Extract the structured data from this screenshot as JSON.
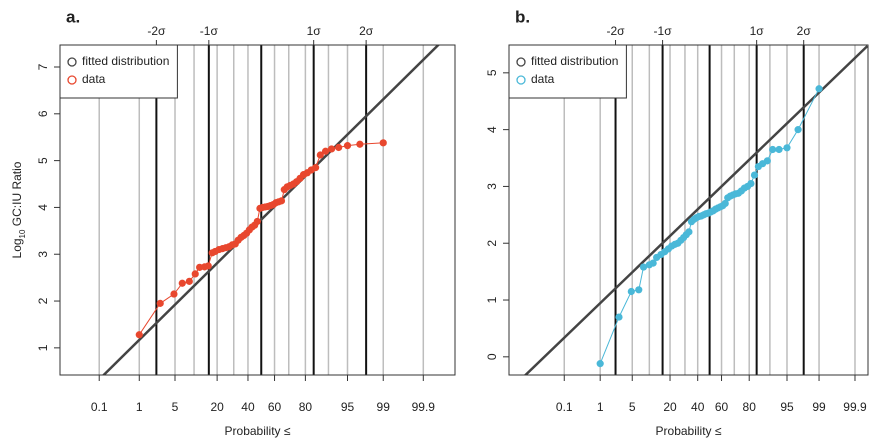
{
  "chart_data": [
    {
      "type": "probability",
      "panel_label": "a.",
      "xscale": "probit",
      "xlabel": "Probability ≤",
      "ylabel": [
        "Log",
        "10",
        " GC:IU Ratio"
      ],
      "xlim": [
        0.0062,
        99.989
      ],
      "ylim": [
        0.42,
        7.47
      ],
      "xticks": [
        0.1,
        1,
        5,
        20,
        40,
        60,
        80,
        95,
        99,
        99.9
      ],
      "xgrid": [
        10,
        30,
        50,
        70,
        90
      ],
      "sigma_ticks": [
        {
          "value": 2.275,
          "label": "-2σ"
        },
        {
          "value": 15.87,
          "label": "-1σ"
        },
        {
          "value": 50,
          "label": null
        },
        {
          "value": 84.13,
          "label": "1σ"
        },
        {
          "value": 97.725,
          "label": "2σ"
        }
      ],
      "yticks": [
        1,
        2,
        3,
        4,
        5,
        6,
        7
      ],
      "legend": "top-left",
      "series": [
        {
          "name": "fitted distribution",
          "color": "#444444",
          "x": [
            0.01,
            99.99
          ],
          "values": [
            -0.37,
            7.85
          ]
        },
        {
          "name": "data",
          "color": "#e8472e",
          "x": [
            1,
            2.7,
            4.8,
            6.6,
            8.5,
            10.4,
            12,
            14,
            15.6,
            17.5,
            19,
            21,
            23,
            25,
            27,
            29,
            31,
            33,
            35,
            37,
            39,
            41,
            43,
            45,
            47,
            49,
            51,
            53,
            55,
            57,
            59,
            61,
            63,
            65,
            67,
            69,
            71,
            73,
            75,
            77,
            79,
            81,
            83,
            85,
            87,
            89,
            91,
            93,
            95,
            97,
            99
          ],
          "values": [
            1.28,
            1.95,
            2.15,
            2.38,
            2.42,
            2.58,
            2.72,
            2.73,
            2.75,
            3.03,
            3.06,
            3.1,
            3.12,
            3.14,
            3.16,
            3.2,
            3.22,
            3.3,
            3.36,
            3.4,
            3.45,
            3.52,
            3.58,
            3.62,
            3.7,
            3.98,
            4.0,
            4.01,
            4.02,
            4.04,
            4.06,
            4.1,
            4.12,
            4.14,
            4.38,
            4.44,
            4.47,
            4.5,
            4.55,
            4.62,
            4.7,
            4.74,
            4.8,
            4.85,
            5.12,
            5.2,
            5.25,
            5.28,
            5.32,
            5.35,
            5.38
          ]
        }
      ]
    },
    {
      "type": "probability",
      "panel_label": "b.",
      "xscale": "probit",
      "xlabel": "Probability ≤",
      "xlim": [
        0.001,
        99.962
      ],
      "ylim": [
        -0.32,
        5.49
      ],
      "xticks": [
        0.1,
        1,
        5,
        20,
        40,
        60,
        80,
        95,
        99,
        99.9
      ],
      "xgrid": [
        10,
        30,
        50,
        70,
        90
      ],
      "sigma_ticks": [
        {
          "value": 2.275,
          "label": "-2σ"
        },
        {
          "value": 15.87,
          "label": "-1σ"
        },
        {
          "value": 50,
          "label": null
        },
        {
          "value": 84.13,
          "label": "1σ"
        },
        {
          "value": 97.725,
          "label": "2σ"
        }
      ],
      "yticks": [
        0,
        1,
        2,
        3,
        4,
        5
      ],
      "legend": "top-left",
      "series": [
        {
          "name": "fitted distribution",
          "color": "#444444",
          "x": [
            0.001,
            99.96
          ],
          "values": [
            -0.6,
            5.47
          ]
        },
        {
          "name": "data",
          "color": "#4ab8d8",
          "x": [
            1,
            2.7,
            4.8,
            6.6,
            8,
            10,
            11.5,
            13,
            15,
            17,
            19,
            21,
            23,
            25,
            27,
            29,
            31,
            33,
            35,
            37,
            39,
            41,
            43,
            45,
            47,
            49,
            51,
            53,
            55,
            57,
            59,
            61,
            63,
            65,
            67,
            69,
            71,
            73,
            75,
            77,
            79,
            81,
            83,
            85,
            87,
            89,
            91,
            93,
            95,
            97,
            99
          ],
          "values": [
            -0.12,
            0.7,
            1.15,
            1.18,
            1.58,
            1.62,
            1.65,
            1.75,
            1.8,
            1.85,
            1.9,
            1.95,
            1.98,
            2.0,
            2.05,
            2.1,
            2.15,
            2.2,
            2.38,
            2.42,
            2.45,
            2.47,
            2.48,
            2.5,
            2.52,
            2.53,
            2.55,
            2.57,
            2.6,
            2.62,
            2.64,
            2.66,
            2.7,
            2.8,
            2.83,
            2.85,
            2.87,
            2.88,
            2.92,
            2.97,
            3.0,
            3.05,
            3.2,
            3.35,
            3.4,
            3.45,
            3.65,
            3.65,
            3.68,
            4.0,
            4.72
          ]
        }
      ]
    }
  ]
}
